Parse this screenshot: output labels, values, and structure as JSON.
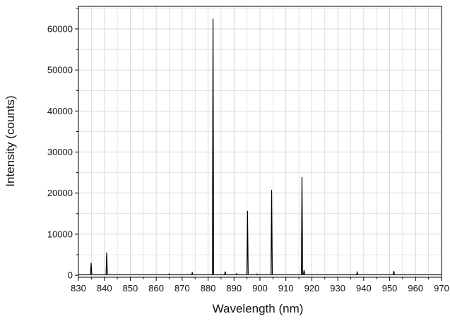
{
  "chart_data": {
    "type": "line",
    "title": "",
    "xlabel": "Wavelength (nm)",
    "ylabel": "Intensity (counts)",
    "xlim": [
      830,
      970
    ],
    "ylim": [
      -500,
      65500
    ],
    "x_ticks": [
      830,
      840,
      850,
      860,
      870,
      880,
      890,
      900,
      910,
      920,
      930,
      940,
      950,
      960,
      970
    ],
    "x_tick_labels": [
      "830",
      "840",
      "850",
      "860",
      "870",
      "880",
      "890",
      "900",
      "910",
      "920",
      "930",
      "940",
      "950",
      "960",
      "970"
    ],
    "y_ticks": [
      0,
      10000,
      20000,
      30000,
      40000,
      50000,
      60000
    ],
    "y_tick_labels": [
      "0",
      "10000",
      "20000",
      "30000",
      "40000",
      "50000",
      "60000"
    ],
    "grid": true,
    "legend": "none",
    "series": [
      {
        "color": "#000000",
        "peaks": [
          {
            "x": 834.9,
            "y": 3000
          },
          {
            "x": 840.9,
            "y": 5500
          },
          {
            "x": 865.0,
            "y": 300
          },
          {
            "x": 873.9,
            "y": 600
          },
          {
            "x": 881.9,
            "y": 62500
          },
          {
            "x": 886.6,
            "y": 900
          },
          {
            "x": 891.0,
            "y": 400
          },
          {
            "x": 895.2,
            "y": 15700
          },
          {
            "x": 898.9,
            "y": 300
          },
          {
            "x": 904.5,
            "y": 20800
          },
          {
            "x": 916.2,
            "y": 23900
          },
          {
            "x": 917.0,
            "y": 1200
          },
          {
            "x": 937.5,
            "y": 700
          },
          {
            "x": 951.6,
            "y": 1000
          }
        ]
      }
    ]
  }
}
